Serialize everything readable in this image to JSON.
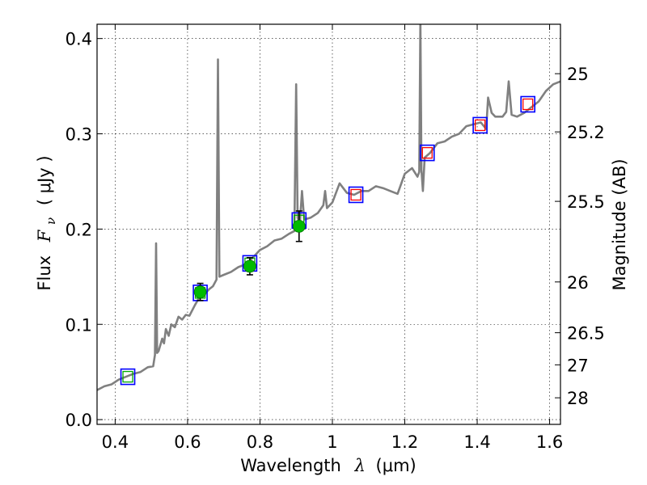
{
  "chart_data": {
    "type": "scatter",
    "xlabel_text": "Wavelength",
    "xlabel_symbol": "λ",
    "xlabel_unit": "(μm)",
    "ylabel_text": "Flux",
    "ylabel_symbol": "F",
    "ylabel_subscript": "ν",
    "ylabel_unit": "( μJy )",
    "y2label": "Magnitude (AB)",
    "xlim": [
      0.35,
      1.63
    ],
    "ylim": [
      -0.005,
      0.415
    ],
    "grid": true,
    "x_ticks": [
      {
        "value": 0.4,
        "label": "0.4"
      },
      {
        "value": 0.6,
        "label": "0.6"
      },
      {
        "value": 0.8,
        "label": "0.8"
      },
      {
        "value": 1.0,
        "label": "1"
      },
      {
        "value": 1.2,
        "label": "1.2"
      },
      {
        "value": 1.4,
        "label": "1.4"
      },
      {
        "value": 1.6,
        "label": "1.6"
      }
    ],
    "y_ticks": [
      {
        "value": 0.0,
        "label": "0.0"
      },
      {
        "value": 0.1,
        "label": "0.1"
      },
      {
        "value": 0.2,
        "label": "0.2"
      },
      {
        "value": 0.3,
        "label": "0.3"
      },
      {
        "value": 0.4,
        "label": "0.4"
      }
    ],
    "y2_ticks": [
      {
        "flux": 0.3631,
        "label": "25"
      },
      {
        "flux": 0.302,
        "label": "25.2"
      },
      {
        "flux": 0.2291,
        "label": "25.5"
      },
      {
        "flux": 0.1445,
        "label": "26"
      },
      {
        "flux": 0.0912,
        "label": "26.5"
      },
      {
        "flux": 0.0575,
        "label": "27"
      },
      {
        "flux": 0.0229,
        "label": "28"
      }
    ],
    "series": [
      {
        "style": "line",
        "color": "#808080",
        "points": [
          [
            0.35,
            0.031
          ],
          [
            0.37,
            0.035
          ],
          [
            0.39,
            0.037
          ],
          [
            0.41,
            0.042
          ],
          [
            0.43,
            0.045
          ],
          [
            0.45,
            0.048
          ],
          [
            0.47,
            0.05
          ],
          [
            0.49,
            0.055
          ],
          [
            0.505,
            0.056
          ],
          [
            0.51,
            0.068
          ],
          [
            0.513,
            0.185
          ],
          [
            0.516,
            0.07
          ],
          [
            0.52,
            0.072
          ],
          [
            0.53,
            0.085
          ],
          [
            0.535,
            0.08
          ],
          [
            0.54,
            0.095
          ],
          [
            0.548,
            0.088
          ],
          [
            0.555,
            0.1
          ],
          [
            0.565,
            0.097
          ],
          [
            0.575,
            0.108
          ],
          [
            0.585,
            0.105
          ],
          [
            0.595,
            0.11
          ],
          [
            0.605,
            0.109
          ],
          [
            0.62,
            0.12
          ],
          [
            0.635,
            0.13
          ],
          [
            0.65,
            0.133
          ],
          [
            0.66,
            0.137
          ],
          [
            0.67,
            0.14
          ],
          [
            0.68,
            0.147
          ],
          [
            0.684,
            0.378
          ],
          [
            0.688,
            0.15
          ],
          [
            0.7,
            0.152
          ],
          [
            0.72,
            0.155
          ],
          [
            0.74,
            0.16
          ],
          [
            0.76,
            0.163
          ],
          [
            0.78,
            0.17
          ],
          [
            0.8,
            0.178
          ],
          [
            0.82,
            0.182
          ],
          [
            0.84,
            0.188
          ],
          [
            0.86,
            0.19
          ],
          [
            0.88,
            0.195
          ],
          [
            0.895,
            0.198
          ],
          [
            0.9,
            0.352
          ],
          [
            0.904,
            0.212
          ],
          [
            0.91,
            0.205
          ],
          [
            0.916,
            0.24
          ],
          [
            0.922,
            0.21
          ],
          [
            0.94,
            0.212
          ],
          [
            0.96,
            0.217
          ],
          [
            0.975,
            0.225
          ],
          [
            0.98,
            0.24
          ],
          [
            0.985,
            0.222
          ],
          [
            1.0,
            0.228
          ],
          [
            1.02,
            0.248
          ],
          [
            1.04,
            0.238
          ],
          [
            1.06,
            0.236
          ],
          [
            1.08,
            0.24
          ],
          [
            1.1,
            0.24
          ],
          [
            1.12,
            0.245
          ],
          [
            1.14,
            0.243
          ],
          [
            1.16,
            0.24
          ],
          [
            1.18,
            0.237
          ],
          [
            1.2,
            0.258
          ],
          [
            1.22,
            0.264
          ],
          [
            1.235,
            0.255
          ],
          [
            1.24,
            0.26
          ],
          [
            1.243,
            0.42
          ],
          [
            1.246,
            0.262
          ],
          [
            1.25,
            0.24
          ],
          [
            1.255,
            0.275
          ],
          [
            1.27,
            0.28
          ],
          [
            1.29,
            0.29
          ],
          [
            1.31,
            0.292
          ],
          [
            1.33,
            0.297
          ],
          [
            1.35,
            0.3
          ],
          [
            1.37,
            0.308
          ],
          [
            1.39,
            0.31
          ],
          [
            1.41,
            0.312
          ],
          [
            1.425,
            0.305
          ],
          [
            1.43,
            0.338
          ],
          [
            1.44,
            0.322
          ],
          [
            1.45,
            0.318
          ],
          [
            1.47,
            0.318
          ],
          [
            1.48,
            0.323
          ],
          [
            1.487,
            0.355
          ],
          [
            1.495,
            0.32
          ],
          [
            1.51,
            0.318
          ],
          [
            1.53,
            0.322
          ],
          [
            1.55,
            0.328
          ],
          [
            1.57,
            0.334
          ],
          [
            1.59,
            0.345
          ],
          [
            1.61,
            0.352
          ],
          [
            1.63,
            0.355
          ]
        ]
      },
      {
        "style": "open-square",
        "edge_color": "#0000ff",
        "points": [
          [
            0.435,
            0.045
          ],
          [
            0.635,
            0.133
          ],
          [
            0.772,
            0.164
          ],
          [
            0.908,
            0.209
          ],
          [
            1.065,
            0.236
          ],
          [
            1.262,
            0.28
          ],
          [
            1.408,
            0.309
          ],
          [
            1.54,
            0.331
          ]
        ]
      },
      {
        "style": "open-square-small",
        "edge_color": "#ff0000",
        "points": [
          [
            1.065,
            0.236
          ],
          [
            1.262,
            0.28
          ],
          [
            1.408,
            0.309
          ],
          [
            1.54,
            0.331
          ]
        ]
      },
      {
        "style": "open-square-small",
        "edge_color": "#00aa00",
        "points": [
          [
            0.435,
            0.045
          ],
          [
            0.635,
            0.133
          ],
          [
            0.772,
            0.164
          ],
          [
            0.908,
            0.209
          ]
        ]
      },
      {
        "style": "filled-circle-errorbar",
        "color": "#00bb00",
        "points": [
          [
            0.635,
            0.134,
            0.009
          ],
          [
            0.772,
            0.161,
            0.009
          ],
          [
            0.908,
            0.203,
            0.016
          ]
        ]
      }
    ]
  }
}
